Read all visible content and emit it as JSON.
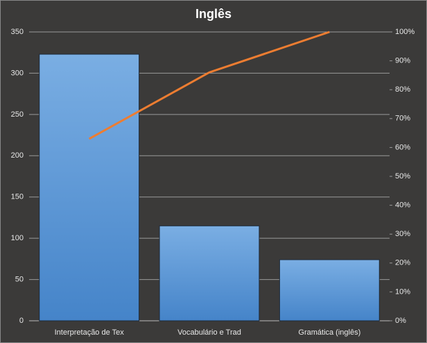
{
  "chart_data": {
    "type": "pareto",
    "title": "Inglês",
    "categories": [
      "Interpretação de Tex",
      "Vocabulário e Trad",
      "Gramática (inglês)"
    ],
    "series": [
      {
        "type": "bar",
        "color": "#5b9bd5",
        "values": [
          323,
          115,
          74
        ]
      },
      {
        "type": "line",
        "axis": "y2",
        "color": "#ed7d31",
        "values": [
          63,
          86,
          100
        ]
      }
    ],
    "ylim": [
      0,
      350
    ],
    "yticks": [
      0,
      50,
      100,
      150,
      200,
      250,
      300,
      350
    ],
    "y2lim": [
      0,
      100
    ],
    "y2ticks": [
      {
        "value": 0,
        "label": "0%"
      },
      {
        "value": 10,
        "label": "10%"
      },
      {
        "value": 20,
        "label": "20%"
      },
      {
        "value": 30,
        "label": "30%"
      },
      {
        "value": 40,
        "label": "40%"
      },
      {
        "value": 50,
        "label": "50%"
      },
      {
        "value": 60,
        "label": "60%"
      },
      {
        "value": 70,
        "label": "70%"
      },
      {
        "value": 80,
        "label": "80%"
      },
      {
        "value": 90,
        "label": "90%"
      },
      {
        "value": 100,
        "label": "100%"
      }
    ],
    "grid": true
  }
}
